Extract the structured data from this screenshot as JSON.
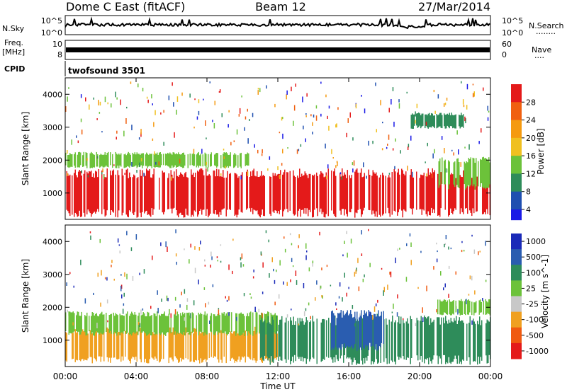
{
  "header": {
    "station": "Dome C East (fitACF)",
    "beam": "Beam 12",
    "date": "27/Mar/2014"
  },
  "panels": {
    "nsky": {
      "label": "N.Sky",
      "left_ticks": [
        "10^5",
        "10^0"
      ],
      "right_ticks": [
        "10^5",
        "10^0"
      ],
      "right_label": "N.Search",
      "right_dots": "........"
    },
    "freq": {
      "label_line1": "Freq.",
      "label_line2": "[MHz]",
      "left_ticks": [
        "10",
        "8"
      ],
      "right_ticks": [
        "60",
        "0"
      ],
      "right_label": "Nave",
      "right_dots": "...."
    },
    "cpid": {
      "label": "CPID",
      "value": "twofsound 3501"
    }
  },
  "colors": {
    "power": [
      "#1a1ae6",
      "#1f4fb0",
      "#2e8c5a",
      "#6cc23a",
      "#f0c020",
      "#f59a10",
      "#f06010",
      "#e41a1a"
    ],
    "velocity": [
      "#e41a1a",
      "#f05a10",
      "#f0a020",
      "#c8c8c8",
      "#6cc23a",
      "#2e8c5a",
      "#2a5db0",
      "#1a2ab8"
    ]
  },
  "chart_data": [
    {
      "type": "heatmap",
      "name": "power",
      "ylabel": "Slant Range [km]",
      "ylim": [
        200,
        4500
      ],
      "yticks": [
        1000,
        2000,
        3000,
        4000
      ],
      "colorbar_label": "Power [dB]",
      "colorbar_ticks": [
        "28",
        "24",
        "20",
        "16",
        "12",
        "8",
        "4"
      ],
      "bands": [
        {
          "x_start": 0.0,
          "x_end": 24.0,
          "range_start": 400,
          "range_end": 1600,
          "level": "28"
        },
        {
          "x_start": 0.0,
          "x_end": 10.5,
          "range_start": 1800,
          "range_end": 2200,
          "level": "12"
        },
        {
          "x_start": 21.0,
          "x_end": 24.0,
          "range_start": 1200,
          "range_end": 2000,
          "level": "12"
        },
        {
          "x_start": 19.5,
          "x_end": 22.5,
          "range_start": 3000,
          "range_end": 3400,
          "level": "8"
        }
      ]
    },
    {
      "type": "heatmap",
      "name": "velocity",
      "ylabel": "Slant Range [km]",
      "ylim": [
        200,
        4500
      ],
      "yticks": [
        1000,
        2000,
        3000,
        4000
      ],
      "xlabel": "Time UT",
      "xticks": [
        "00:00",
        "04:00",
        "08:00",
        "12:00",
        "16:00",
        "20:00",
        "00:00"
      ],
      "colorbar_label": "Velocity [m s^-1]",
      "colorbar_ticks": [
        "1000",
        "500",
        "100",
        "25",
        "-25",
        "-100",
        "-500",
        "-1000"
      ],
      "bands": [
        {
          "x_start": 0.0,
          "x_end": 12.0,
          "range_start": 400,
          "range_end": 1300,
          "level": "-100"
        },
        {
          "x_start": 0.0,
          "x_end": 12.0,
          "range_start": 1200,
          "range_end": 1800,
          "level": "25"
        },
        {
          "x_start": 11.0,
          "x_end": 24.0,
          "range_start": 400,
          "range_end": 1600,
          "level": "100"
        },
        {
          "x_start": 15.0,
          "x_end": 18.0,
          "range_start": 800,
          "range_end": 1800,
          "level": "500"
        },
        {
          "x_start": 21.0,
          "x_end": 24.0,
          "range_start": 1800,
          "range_end": 2200,
          "level": "25"
        }
      ]
    }
  ]
}
